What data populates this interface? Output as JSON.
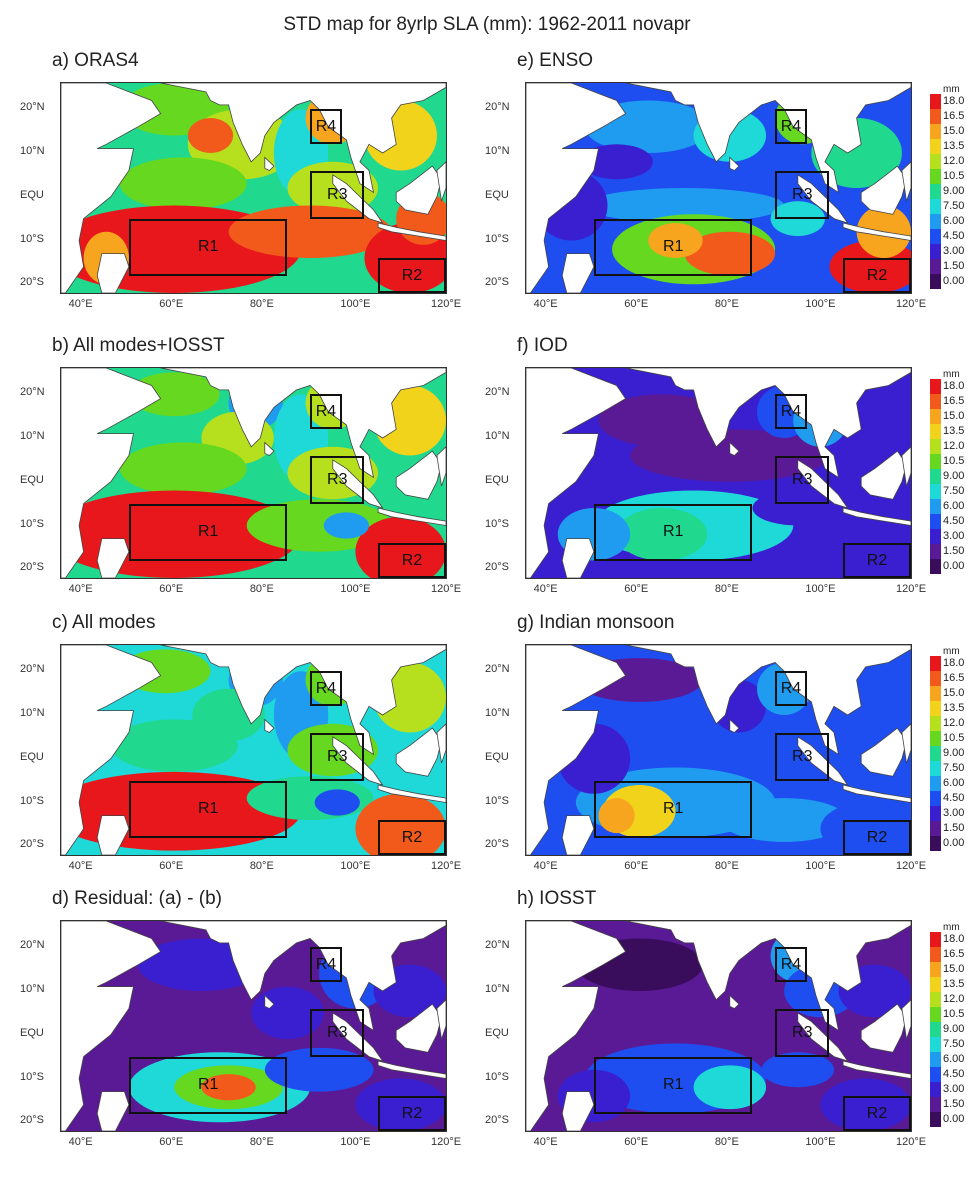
{
  "figure": {
    "title": "STD map for 8yrlp SLA (mm): 1962-2011 novapr"
  },
  "axes": {
    "lat_labels": [
      "20°N",
      "10°N",
      "EQU",
      "10°S",
      "20°S"
    ],
    "lon_labels": [
      "40°E",
      "60°E",
      "80°E",
      "100°E",
      "120°E"
    ]
  },
  "colorbar": {
    "unit": "mm",
    "levels": [
      "18.0",
      "16.5",
      "15.0",
      "13.5",
      "12.0",
      "10.5",
      "9.00",
      "7.50",
      "6.00",
      "4.50",
      "3.00",
      "1.50",
      "0.00"
    ],
    "colors": [
      "#e8171b",
      "#f25a1c",
      "#f7a51e",
      "#f2d31c",
      "#b6e01d",
      "#66d81f",
      "#20d88e",
      "#1fd8d8",
      "#1f9cf0",
      "#1f4ef0",
      "#3a1fd0",
      "#5a1a96",
      "#3a0c5c"
    ]
  },
  "regions": [
    "R1",
    "R2",
    "R3",
    "R4"
  ],
  "panels": [
    {
      "title": "a) ORAS4",
      "field": "oras4"
    },
    {
      "title": "e) ENSO",
      "field": "enso"
    },
    {
      "title": "b) All modes+IOSST",
      "field": "allplus"
    },
    {
      "title": "f) IOD",
      "field": "iod"
    },
    {
      "title": "c) All modes",
      "field": "all"
    },
    {
      "title": "g) Indian monsoon",
      "field": "monsoon"
    },
    {
      "title": "d) Residual: (a) - (b)",
      "field": "residual"
    },
    {
      "title": "h) IOSST",
      "field": "iosst"
    }
  ],
  "colors": {
    "land": "#ffffff",
    "high": "#e8171b",
    "mid_green": "#4ccd3a",
    "blue": "#1f4ef0",
    "purple": "#4b1a8a"
  }
}
